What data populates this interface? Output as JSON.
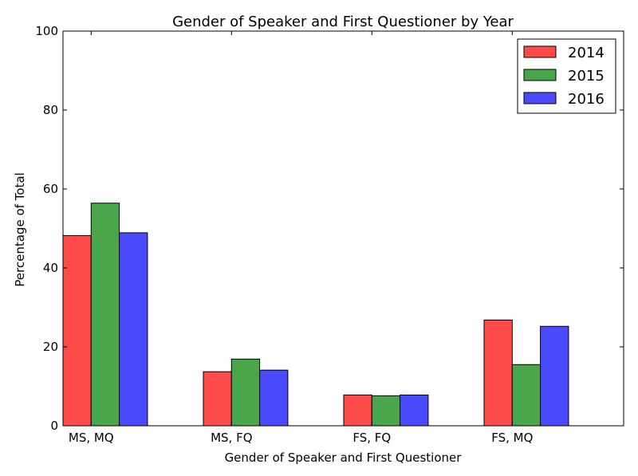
{
  "chart_data": {
    "type": "bar",
    "title": "Gender of Speaker and First Questioner by Year",
    "xlabel": "Gender of Speaker and First Questioner",
    "ylabel": "Percentage of Total",
    "ylim": [
      0,
      100
    ],
    "yticks": [
      0,
      20,
      40,
      60,
      80,
      100
    ],
    "categories": [
      "MS, MQ",
      "MS, FQ",
      "FS, FQ",
      "FS, MQ"
    ],
    "series": [
      {
        "name": "2014",
        "color": "#ff4a4a",
        "values": [
          48.2,
          13.7,
          7.8,
          26.8
        ]
      },
      {
        "name": "2015",
        "color": "#4aa64a",
        "values": [
          56.4,
          16.9,
          7.6,
          15.5
        ]
      },
      {
        "name": "2016",
        "color": "#4a4aff",
        "values": [
          48.9,
          14.1,
          7.8,
          25.2
        ]
      }
    ],
    "legend_position": "top-right",
    "grid": false
  }
}
